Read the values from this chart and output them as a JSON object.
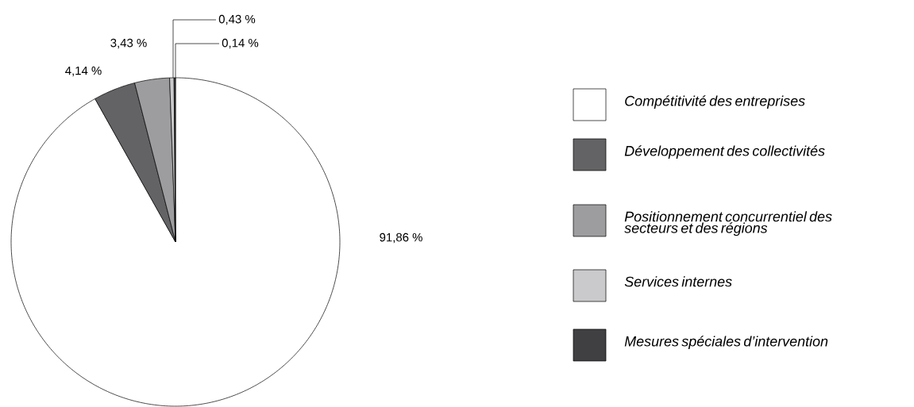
{
  "chart_data": {
    "type": "pie",
    "categories": [
      "Compétitivité des entreprises",
      "Développement des collectivités",
      "Positionnement concurrentiel des secteurs et des régions",
      "Services internes",
      "Mesures spéciales d’intervention"
    ],
    "values": [
      91.86,
      4.14,
      3.43,
      0.43,
      0.14
    ],
    "colors": [
      "#ffffff",
      "#636365",
      "#9d9d9f",
      "#cacacc",
      "#404042"
    ],
    "value_labels": [
      "91,86 %",
      "4,14 %",
      "3,43 %",
      "0,43 %",
      "0,14 %"
    ],
    "legend": "right"
  }
}
